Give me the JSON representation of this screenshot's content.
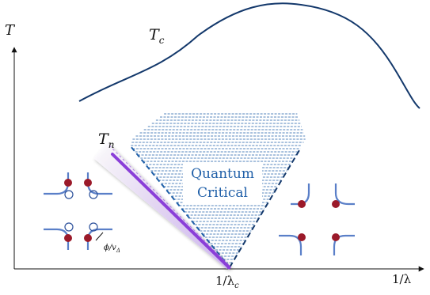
{
  "axes": {
    "y_label": "T",
    "x_label": "1/λ",
    "critical_point_label": "1/λ",
    "critical_point_sub": "c"
  },
  "curves": {
    "tc_label": "T",
    "tc_sub": "c",
    "tn_label": "T",
    "tn_sub": "n"
  },
  "regions": {
    "quantum_critical_line1": "Quantum",
    "quantum_critical_line2": "Critical"
  },
  "insets": {
    "gap_label": "ϕ/v",
    "gap_sub": "Δ"
  },
  "colors": {
    "tc_curve": "#13386b",
    "hatch": "#1f5fa8",
    "tn_line": "#8a3fd8",
    "tn_band": "#d9c7ef",
    "fermi_line": "#5a7fc8",
    "hot_spot": "#9b1a2a",
    "axis": "#111111"
  }
}
